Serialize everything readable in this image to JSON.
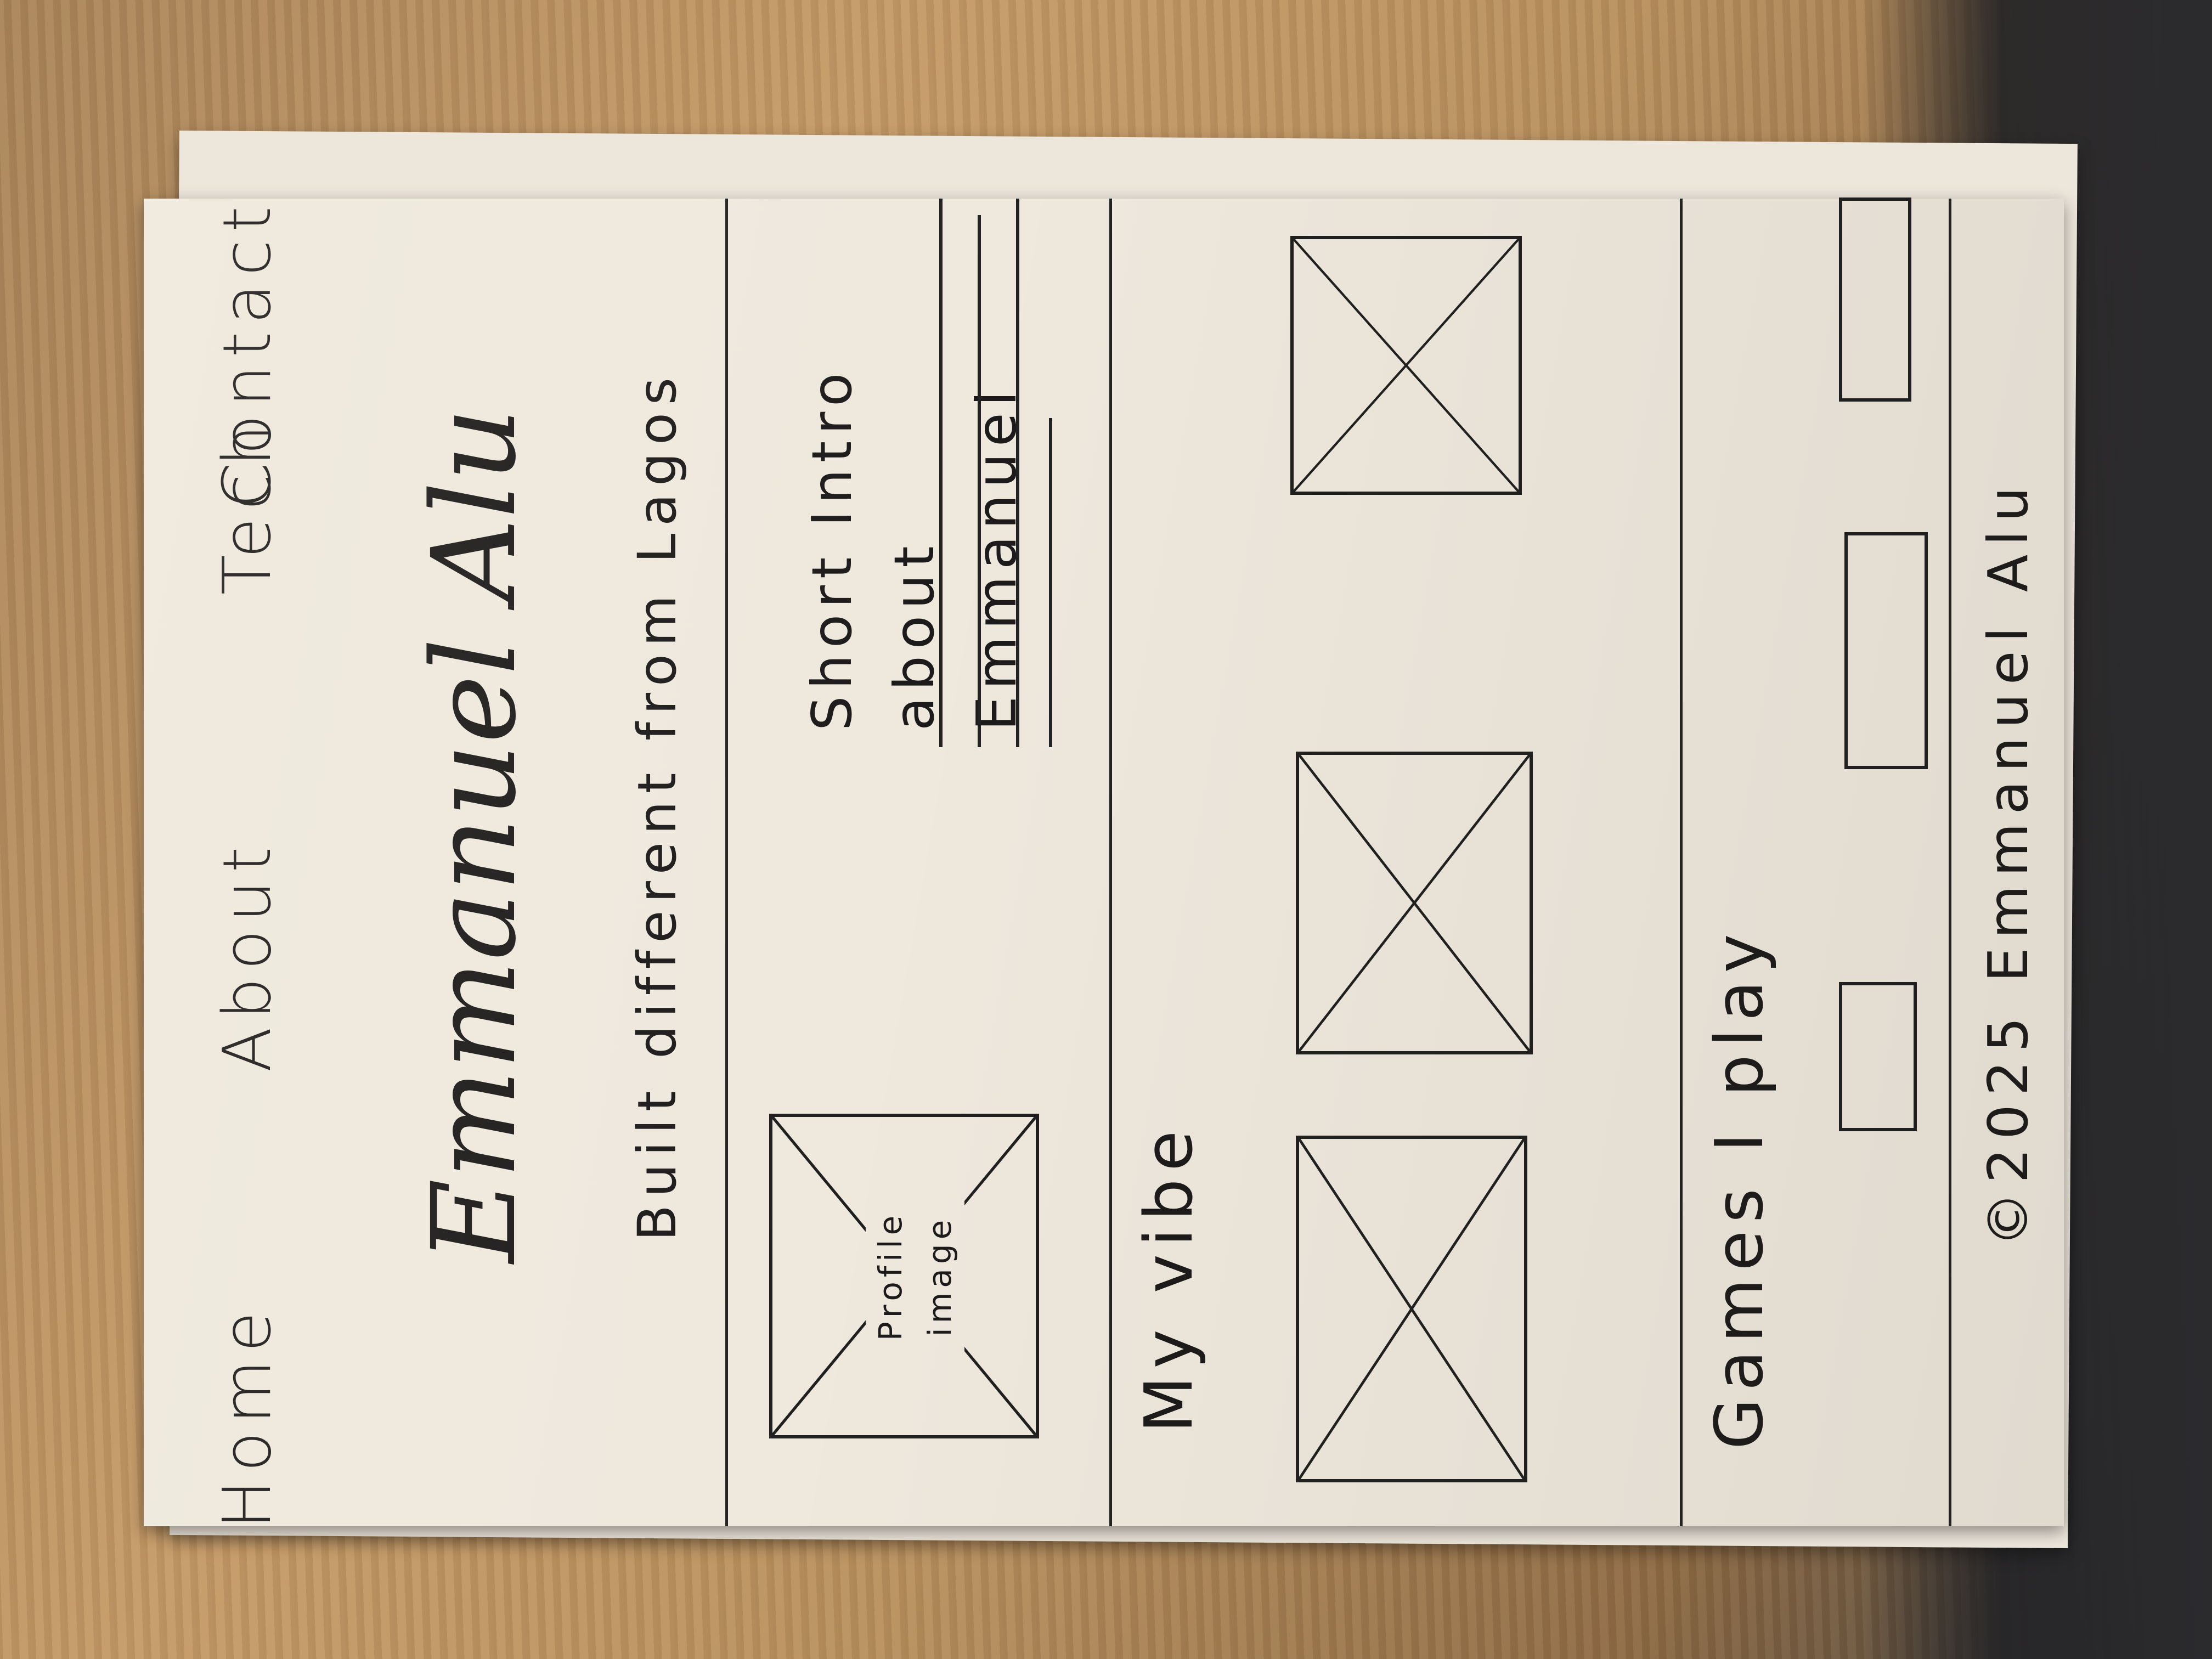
{
  "nav": {
    "items": [
      "Home",
      "About",
      "Tech",
      "Contact"
    ]
  },
  "hero": {
    "name": "Emmanuel Alu",
    "tagline": "Built different from Lagos"
  },
  "about": {
    "image_label_line1": "Profile",
    "image_label_line2": "image",
    "intro_line1": "Short Intro",
    "intro_line2": "about Emmanuel"
  },
  "vibe": {
    "title": "My vibe"
  },
  "games": {
    "title": "Games I play"
  },
  "footer": {
    "text": "©2025 Emmanuel Alu"
  }
}
